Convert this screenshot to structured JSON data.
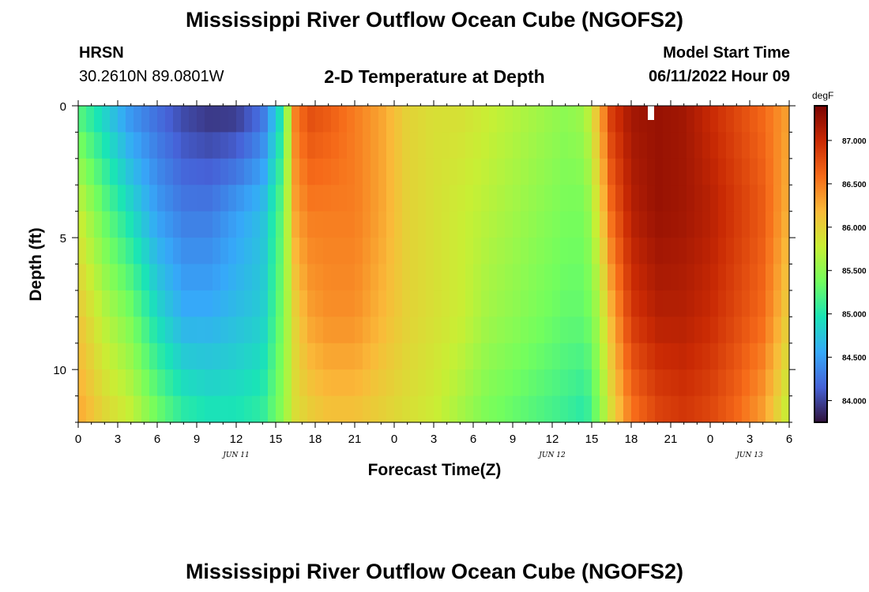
{
  "header": {
    "title": "Mississippi River Outflow Ocean Cube (NGOFS2)",
    "station_code": "HRSN",
    "station_coords": "30.2610N  89.0801W",
    "subtitle": "2-D Temperature at Depth",
    "model_start_label": "Model Start Time",
    "model_start_value": "06/11/2022 Hour 09"
  },
  "footer": {
    "title": "Mississippi River Outflow Ocean Cube (NGOFS2)"
  },
  "colors": {
    "colormap": [
      "#30123b",
      "#4662d7",
      "#36a9f9",
      "#1ae4b6",
      "#72fe5e",
      "#c8ef34",
      "#faba39",
      "#f66b19",
      "#ca2a04",
      "#7a0403"
    ],
    "nowcast_marker": "#ffffff"
  },
  "chart_data": {
    "type": "heatmap",
    "title": "2-D Temperature at Depth",
    "xlabel": "Forecast Time(Z)",
    "ylabel": "Depth (ft)",
    "xlim": [
      0,
      54
    ],
    "ylim": [
      0,
      12
    ],
    "y_inverted": true,
    "x_ticks": [
      0,
      3,
      6,
      9,
      12,
      15,
      18,
      21,
      24,
      27,
      30,
      33,
      36,
      39,
      42,
      45,
      48,
      51,
      54
    ],
    "x_tick_labels": [
      "0",
      "3",
      "6",
      "9",
      "12",
      "15",
      "18",
      "21",
      "0",
      "3",
      "6",
      "9",
      "12",
      "15",
      "18",
      "21",
      "0",
      "3",
      "6"
    ],
    "y_ticks": [
      0,
      5,
      10
    ],
    "y_tick_labels": [
      "0",
      "5",
      "10"
    ],
    "date_labels": [
      {
        "x": 12,
        "text": "JUN 11"
      },
      {
        "x": 36,
        "text": "JUN 12"
      },
      {
        "x": 51,
        "text": "JUN 13"
      }
    ],
    "colorbar": {
      "unit": "degF",
      "range": [
        83.75,
        87.4
      ],
      "ticks": [
        84.0,
        84.5,
        85.0,
        85.5,
        86.0,
        86.5,
        87.0
      ],
      "tick_labels": [
        "84.000",
        "84.500",
        "85.000",
        "85.500",
        "86.000",
        "86.500",
        "87.000"
      ]
    },
    "nowcast_marker_x": 43.5,
    "time_knots": [
      0,
      2,
      4,
      6,
      8,
      10,
      12,
      14,
      15.5,
      16.5,
      17.5,
      19,
      21,
      23,
      25,
      27,
      29,
      31,
      33,
      35,
      37,
      38.5,
      39.5,
      40.5,
      42,
      44,
      46,
      48,
      50,
      52,
      54
    ],
    "depth_knots": [
      0,
      4,
      8,
      12
    ],
    "values": [
      [
        85.2,
        84.8,
        84.4,
        84.2,
        84.0,
        83.9,
        83.9,
        84.2,
        85.0,
        86.5,
        86.8,
        86.7,
        86.5,
        86.3,
        86.0,
        85.9,
        85.9,
        85.8,
        85.7,
        85.6,
        85.5,
        85.6,
        86.2,
        86.9,
        87.2,
        87.25,
        87.2,
        87.0,
        86.8,
        86.6,
        86.3
      ],
      [
        85.8,
        85.3,
        84.9,
        84.5,
        84.3,
        84.3,
        84.5,
        84.7,
        85.3,
        86.3,
        86.5,
        86.5,
        86.5,
        86.3,
        86.0,
        85.9,
        85.8,
        85.7,
        85.6,
        85.5,
        85.4,
        85.4,
        85.9,
        86.6,
        87.1,
        87.25,
        87.2,
        87.1,
        86.9,
        86.7,
        86.2
      ],
      [
        86.1,
        85.7,
        85.4,
        84.9,
        84.6,
        84.6,
        84.7,
        84.8,
        85.4,
        86.0,
        86.3,
        86.4,
        86.4,
        86.2,
        86.0,
        85.9,
        85.8,
        85.6,
        85.5,
        85.4,
        85.3,
        85.3,
        85.6,
        86.2,
        86.9,
        87.1,
        87.1,
        87.0,
        86.8,
        86.6,
        86.0
      ],
      [
        86.3,
        86.0,
        85.8,
        85.4,
        85.1,
        85.0,
        85.0,
        85.1,
        85.5,
        85.9,
        86.0,
        86.1,
        86.1,
        86.0,
        85.9,
        85.8,
        85.6,
        85.4,
        85.3,
        85.2,
        85.1,
        85.0,
        85.4,
        85.9,
        86.5,
        86.8,
        86.9,
        86.8,
        86.6,
        86.3,
        85.7
      ]
    ],
    "columns": 90,
    "rows": 12
  }
}
